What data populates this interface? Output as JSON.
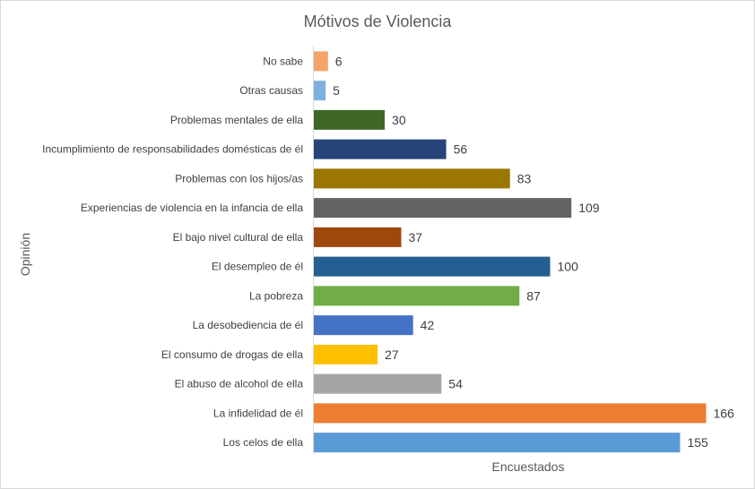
{
  "chart_data": {
    "type": "bar",
    "orientation": "horizontal",
    "title": "Mótivos de Violencia",
    "xlabel": "Encuestados",
    "ylabel": "Opinión",
    "xlim": [
      0,
      170
    ],
    "grid": false,
    "legend": "none",
    "categories": [
      "No sabe",
      "Otras causas",
      "Problemas mentales de ella",
      "Incumplimiento de responsabilidades domésticas de él",
      "Problemas con los hijos/as",
      "Experiencias de violencia en la infancia de ella",
      "El bajo nivel cultural de ella",
      "El desempleo de él",
      "La pobreza",
      "La desobediencia de él",
      "El consumo de drogas de ella",
      "El abuso de alcohol de ella",
      "La infidelidad de él",
      "Los celos de ella"
    ],
    "values": [
      6,
      5,
      30,
      56,
      83,
      109,
      37,
      100,
      87,
      42,
      27,
      54,
      166,
      155
    ],
    "value_labels": [
      "6",
      "5",
      "30",
      "56",
      "83",
      "109",
      "37",
      "100",
      "87",
      "42",
      "27",
      "54",
      "166",
      "155"
    ],
    "colors": [
      "#F4A46A",
      "#7EB0DE",
      "#3F6828",
      "#264478",
      "#9B7702",
      "#636363",
      "#9E480E",
      "#255E91",
      "#70AD47",
      "#4472C4",
      "#FFC000",
      "#A5A5A5",
      "#ED7D31",
      "#5B9BD5"
    ]
  }
}
